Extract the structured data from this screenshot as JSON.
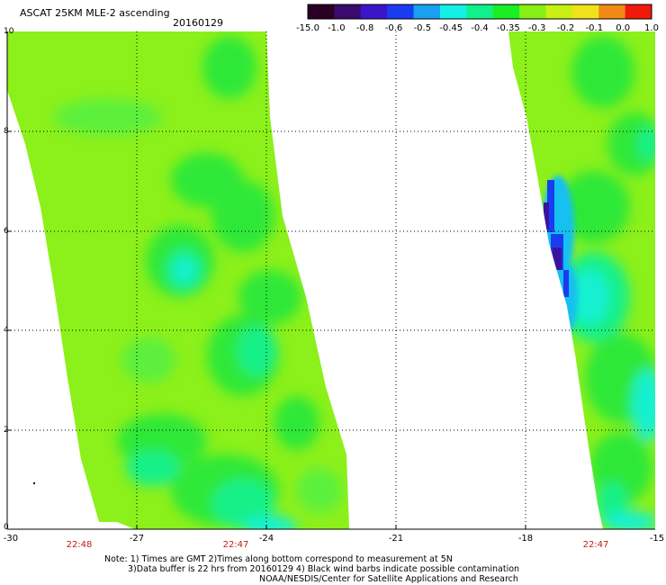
{
  "header": {
    "title": "ASCAT 25KM MLE-2 ascending",
    "date": "20160129"
  },
  "colorbar": {
    "colors": [
      "#2a0024",
      "#3a0a6e",
      "#3a16c8",
      "#1a3cf0",
      "#1aa0f0",
      "#14f0e6",
      "#12f08c",
      "#1aee24",
      "#88f015",
      "#c8f012",
      "#f0e21a",
      "#f08a14",
      "#f01a0a"
    ],
    "labels": [
      "-15.0",
      "-1.0",
      "-0.8",
      "-0.6",
      "-0.5",
      "-0.45",
      "-0.4",
      "-0.35",
      "-0.3",
      "-0.2",
      "-0.1",
      "0.0",
      "1.0"
    ]
  },
  "map": {
    "lon_range": [
      -30,
      -15
    ],
    "lat_range": [
      0,
      10
    ],
    "x_ticks": [
      "-30",
      "-27",
      "-24",
      "-21",
      "-18",
      "-15"
    ],
    "y_ticks": [
      "0",
      "2",
      "4",
      "6",
      "8",
      "10"
    ],
    "grid": "dotted",
    "swath_colors": {
      "base": "#8cf01a",
      "green": "#2ee838",
      "light_green": "#5cf03c",
      "cyan_green": "#18f088",
      "cyan": "#14f0d2",
      "light_blue": "#14c0f0",
      "blue": "#1a3cf0",
      "purple": "#3a12a0"
    }
  },
  "times": [
    "22:48",
    "22:47",
    "22:47"
  ],
  "notes": [
    "Note: 1) Times are GMT 2)Times along bottom correspond to measurement at 5N",
    "3)Data buffer is 22 hrs from 20160129 4) Black wind barbs indicate possible contamination",
    "NOAA/NESDIS/Center for Satellite Applications and Research"
  ]
}
